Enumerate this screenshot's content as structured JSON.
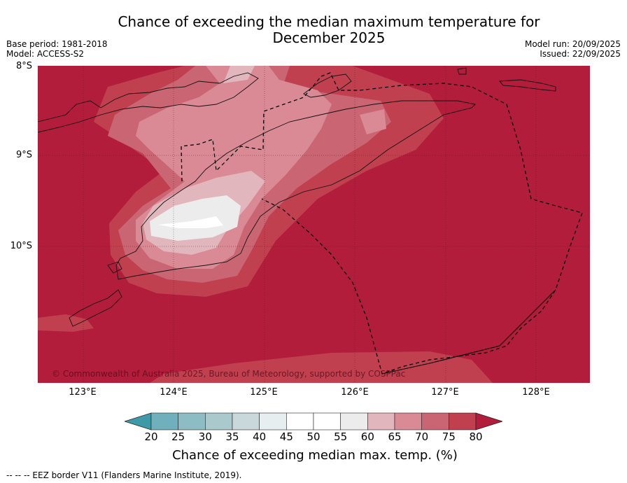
{
  "title": {
    "line1": "Chance of exceeding the median maximum temperature for",
    "line2": "December 2025"
  },
  "meta": {
    "base_period": "Base period: 1981-2018",
    "model": "Model: ACCESS-S2",
    "model_run": "Model run: 20/09/2025",
    "issued": "Issued: 22/09/2025"
  },
  "axes": {
    "lat_labels": [
      "8°S",
      "9°S",
      "10°S"
    ],
    "lon_labels": [
      "123°E",
      "124°E",
      "125°E",
      "126°E",
      "127°E",
      "128°E"
    ]
  },
  "map": {
    "region": "Timor and surrounding waters",
    "credit": "© Commonwealth of Australia 2025, Bureau of Meteorology, supported by COSPPac",
    "background_class_color": "#b11d3a"
  },
  "colorbar": {
    "ticks": [
      "20",
      "25",
      "30",
      "35",
      "40",
      "45",
      "50",
      "55",
      "60",
      "65",
      "70",
      "75",
      "80"
    ],
    "colors": [
      "#3f9aa8",
      "#6fb0bc",
      "#8ebcc5",
      "#aac9cd",
      "#c9d8db",
      "#e7eef0",
      "#ffffff",
      "#ffffff",
      "#ececec",
      "#e2b6bd",
      "#d98a95",
      "#ca6573",
      "#c0404f",
      "#b11d3a"
    ],
    "label": "Chance of exceeding median max. temp. (%)"
  },
  "footer": "--  --  -- EEZ border V11 (Flanders Marine Institute, 2019)."
}
